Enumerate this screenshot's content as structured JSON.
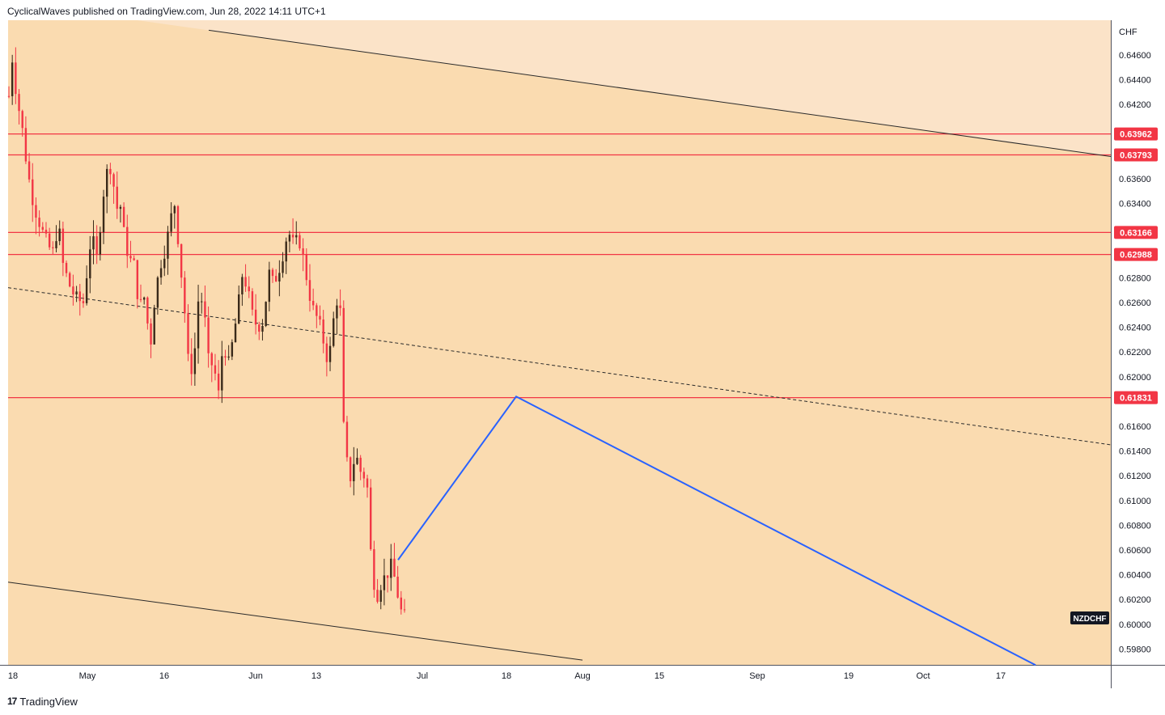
{
  "header": {
    "publish_line": "CyclicalWaves published on TradingView.com, Jun 28, 2022 14:11 UTC+1"
  },
  "footer": {
    "logo_mark": "17",
    "brand": "TradingView"
  },
  "chart_data": {
    "type": "candlestick",
    "symbol": "NZDCHF",
    "currency_label": "CHF",
    "price_axis": {
      "range": [
        0.5972,
        0.6475
      ],
      "ticks": [
        "0.64600",
        "0.64400",
        "0.64200",
        "0.63600",
        "0.63400",
        "0.62800",
        "0.62600",
        "0.62400",
        "0.62200",
        "0.62000",
        "0.61600",
        "0.61400",
        "0.61200",
        "0.61000",
        "0.60800",
        "0.60600",
        "0.60400",
        "0.60200",
        "0.60000",
        "0.59800"
      ]
    },
    "time_axis": {
      "ticks": [
        "18",
        "May",
        "16",
        "Jun",
        "13",
        "Jul",
        "18",
        "Aug",
        "15",
        "Sep",
        "19",
        "Oct",
        "17"
      ]
    },
    "horizontal_levels": [
      {
        "label": "0.63962",
        "value": 0.63962
      },
      {
        "label": "0.63793",
        "value": 0.63793
      },
      {
        "label": "0.63166",
        "value": 0.63166
      },
      {
        "label": "0.62988",
        "value": 0.62988
      },
      {
        "label": "0.61831",
        "value": 0.61831
      }
    ],
    "candles": {
      "n": 118,
      "points": [
        [
          0,
          0.6378
        ],
        [
          6,
          0.6346
        ],
        [
          12,
          0.6443
        ],
        [
          15,
          0.6458
        ],
        [
          20,
          0.643
        ],
        [
          28,
          0.6398
        ],
        [
          34,
          0.6366
        ],
        [
          42,
          0.6338
        ],
        [
          52,
          0.6318
        ],
        [
          60,
          0.6305
        ],
        [
          66,
          0.63
        ],
        [
          72,
          0.6325
        ],
        [
          78,
          0.629
        ],
        [
          88,
          0.627
        ],
        [
          96,
          0.6262
        ],
        [
          103,
          0.626
        ],
        [
          113,
          0.6315
        ],
        [
          120,
          0.6295
        ],
        [
          127,
          0.6345
        ],
        [
          134,
          0.6372
        ],
        [
          138,
          0.6368
        ],
        [
          144,
          0.6336
        ],
        [
          150,
          0.6338
        ],
        [
          154,
          0.631
        ],
        [
          160,
          0.6295
        ],
        [
          166,
          0.629
        ],
        [
          172,
          0.6255
        ],
        [
          178,
          0.6265
        ],
        [
          186,
          0.6225
        ],
        [
          190,
          0.6257
        ],
        [
          197,
          0.6288
        ],
        [
          205,
          0.6305
        ],
        [
          211,
          0.6328
        ],
        [
          216,
          0.634
        ],
        [
          221,
          0.6305
        ],
        [
          228,
          0.6255
        ],
        [
          234,
          0.62
        ],
        [
          240,
          0.6215
        ],
        [
          246,
          0.627
        ],
        [
          252,
          0.6255
        ],
        [
          258,
          0.621
        ],
        [
          264,
          0.621
        ],
        [
          270,
          0.6185
        ],
        [
          276,
          0.623
        ],
        [
          282,
          0.6208
        ],
        [
          288,
          0.623
        ],
        [
          294,
          0.6255
        ],
        [
          300,
          0.6285
        ],
        [
          306,
          0.627
        ],
        [
          312,
          0.625
        ],
        [
          318,
          0.624
        ],
        [
          326,
          0.6245
        ],
        [
          332,
          0.6285
        ],
        [
          338,
          0.6275
        ],
        [
          344,
          0.6285
        ],
        [
          350,
          0.63
        ],
        [
          356,
          0.6318
        ],
        [
          362,
          0.6308
        ],
        [
          370,
          0.631
        ],
        [
          376,
          0.6292
        ],
        [
          382,
          0.6268
        ],
        [
          388,
          0.6252
        ],
        [
          394,
          0.6245
        ],
        [
          400,
          0.6228
        ],
        [
          406,
          0.621
        ],
        [
          412,
          0.6245
        ],
        [
          418,
          0.6268
        ],
        [
          421,
          0.625
        ],
        [
          424,
          0.6165
        ],
        [
          428,
          0.6135
        ],
        [
          432,
          0.6115
        ],
        [
          436,
          0.6128
        ],
        [
          440,
          0.6138
        ],
        [
          444,
          0.6125
        ],
        [
          450,
          0.612
        ],
        [
          454,
          0.611
        ],
        [
          458,
          0.606
        ],
        [
          462,
          0.6035
        ],
        [
          466,
          0.6023
        ],
        [
          472,
          0.6035
        ],
        [
          478,
          0.604
        ],
        [
          484,
          0.6048
        ],
        [
          490,
          0.603
        ],
        [
          494,
          0.6015
        ],
        [
          498,
          0.6005
        ],
        [
          502,
          0.6007
        ]
      ]
    },
    "channel_lines": [
      {
        "style": "solid",
        "from": [
          258,
          0.648
        ],
        "to": [
          1373,
          0.6378
        ]
      },
      {
        "style": "dashed",
        "from": [
          10,
          0.6272
        ],
        "to": [
          1373,
          0.6145
        ]
      },
      {
        "style": "solid",
        "from": [
          10,
          0.6034
        ],
        "to": [
          720,
          0.5971
        ]
      }
    ],
    "projection_path": [
      [
        492,
        0.6052
      ],
      [
        638,
        0.6184
      ],
      [
        1280,
        0.5967
      ]
    ],
    "colors": {
      "background": "#fadbb0",
      "outer_band": "#fbe3c8",
      "level": "#f23645",
      "projection": "#2962ff",
      "bull": "#3a2a1a",
      "bear": "#f23645"
    }
  }
}
